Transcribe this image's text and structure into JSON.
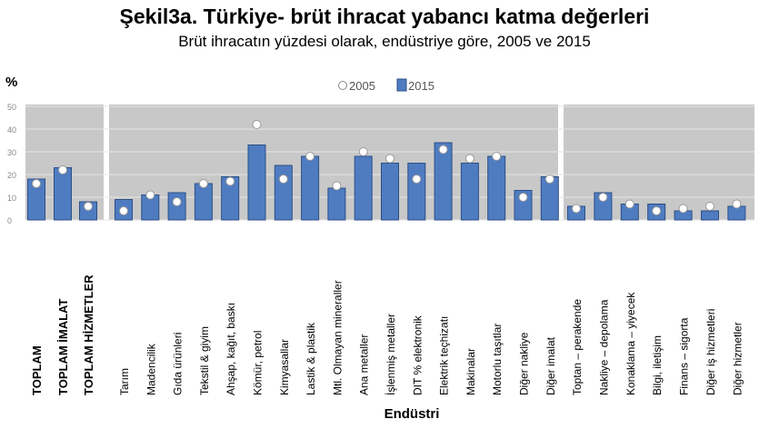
{
  "title": "Şekil3a. Türkiye- brüt  ihracat   yabancı katma değerleri",
  "subtitle": "Brüt ihracatın yüzdesi olarak, endüstriye göre, 2005 ve 2015",
  "colors": {
    "bar": "#4f7cc1",
    "bar_edge": "#2c4f86",
    "panel": "#c8c8c8",
    "marker": "#ffffff"
  },
  "chart_data": {
    "type": "bar",
    "title": "Şekil3a. Türkiye- brüt  ihracat   yabancı katma değerleri",
    "subtitle": "Brüt ihracatın yüzdesi olarak, endüstriye göre, 2005 ve 2015",
    "ylabel": "%",
    "xlabel": "Endüstri",
    "ylim": [
      0,
      50
    ],
    "yticks": [
      "0",
      "10",
      "20",
      "30",
      "40",
      "50"
    ],
    "grid": true,
    "legend_position": "top",
    "legend": [
      "2005",
      "2015"
    ],
    "groups": [
      {
        "name": "total",
        "categories": [
          "TOPLAM",
          "TOPLAM İMALAT",
          "TOPLAM HİZMETLER"
        ]
      },
      {
        "name": "manufacturing",
        "categories": [
          "Tarım",
          "Madencilik",
          "Gıda ürünleri",
          "Tekstil & giyim",
          "Ahşap, kağıt, baskı",
          "Kömür, petrol",
          "Kimyasallar",
          "Lastik & plastik",
          "Mtl. Olmayan mineraller",
          "Ana metaller",
          "İşlenmiş metaller",
          "DIT % elektronik",
          "Elektrik teçhizatı",
          "Makinalar",
          "Motorlu taşıtlar",
          "Diğer nakliye",
          "Diğer imalat"
        ]
      },
      {
        "name": "services",
        "categories": [
          "Toptan – perakende",
          "Nakliye – depolama",
          "Konaklama – yiyecek",
          "Bilgi, iletişim",
          "Finans – sigorta",
          "Diğer iş hizmetleri",
          "Diğer hizmetler"
        ]
      }
    ],
    "categories": [
      "TOPLAM",
      "TOPLAM İMALAT",
      "TOPLAM HİZMETLER",
      "Tarım",
      "Madencilik",
      "Gıda ürünleri",
      "Tekstil & giyim",
      "Ahşap, kağıt, baskı",
      "Kömür, petrol",
      "Kimyasallar",
      "Lastik & plastik",
      "Mtl. Olmayan mineraller",
      "Ana metaller",
      "İşlenmiş metaller",
      "DIT % elektronik",
      "Elektrik teçhizatı",
      "Makinalar",
      "Motorlu taşıtlar",
      "Diğer nakliye",
      "Diğer imalat",
      "Toptan – perakende",
      "Nakliye – depolama",
      "Konaklama – yiyecek",
      "Bilgi, iletişim",
      "Finans – sigorta",
      "Diğer iş hizmetleri",
      "Diğer hizmetler"
    ],
    "series": [
      {
        "name": "2005",
        "style": "marker",
        "values": [
          16,
          22,
          6,
          4,
          11,
          8,
          16,
          17,
          42,
          18,
          28,
          15,
          30,
          27,
          18,
          31,
          27,
          28,
          10,
          18,
          5,
          10,
          7,
          4,
          5,
          6,
          7
        ]
      },
      {
        "name": "2015",
        "style": "bar",
        "values": [
          18,
          23,
          8,
          9,
          11,
          12,
          16,
          19,
          33,
          24,
          28,
          14,
          28,
          25,
          25,
          34,
          25,
          28,
          13,
          19,
          6,
          12,
          7,
          7,
          4,
          4,
          6
        ]
      }
    ]
  }
}
